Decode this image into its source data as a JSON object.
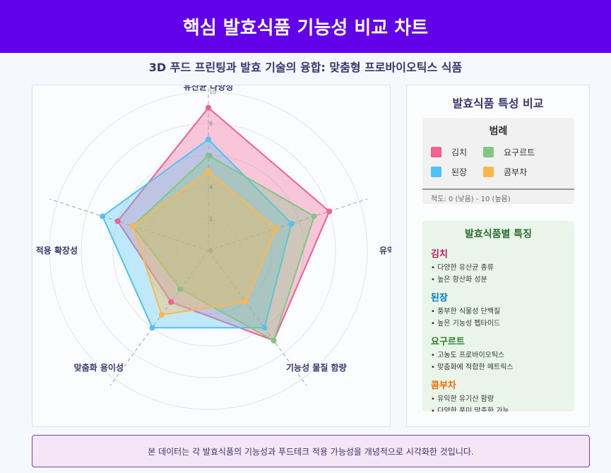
{
  "header": {
    "title": "핵심 발효식품 기능성 비교 차트"
  },
  "subtitle": "3D 푸드 프린팅과 발효 기술의 융합: 맞춤형 프로바이오틱스 식품",
  "chart_data": {
    "type": "radar",
    "axes": [
      "유산균 다양성",
      "유익균 생존율",
      "기능성 물질 함량",
      "맞춤화 용이성",
      "기술 적용 확장성"
    ],
    "range": [
      0,
      10
    ],
    "ticks": [
      "0",
      "2",
      "4",
      "6",
      "8",
      "10"
    ],
    "grid": true,
    "series": [
      {
        "name": "김치",
        "values": [
          9,
          8,
          7,
          4,
          6
        ],
        "color": "#f06292"
      },
      {
        "name": "된장",
        "values": [
          7,
          5.5,
          6,
          6,
          7
        ],
        "color": "#4fc3f7"
      },
      {
        "name": "요구르트",
        "values": [
          6,
          7,
          7,
          3,
          5
        ],
        "color": "#81c784"
      },
      {
        "name": "콤부차",
        "values": [
          5,
          4.5,
          4,
          5,
          5
        ],
        "color": "#ffb74d"
      }
    ]
  },
  "side": {
    "title": "발효식품 특성 비교",
    "legend_title": "범례",
    "scale_note": "척도: 0 (낮음) - 10 (높음)",
    "features_title": "발효식품별 특징",
    "features": [
      {
        "name": "김치",
        "color": "#c2185b",
        "lines": [
          "• 다양한 유산균 종류",
          "• 높은 항산화 성분"
        ]
      },
      {
        "name": "된장",
        "color": "#0277bd",
        "lines": [
          "• 풍부한 식물성 단백질",
          "• 높은 기능성 펩타이드"
        ]
      },
      {
        "name": "요구르트",
        "color": "#2e7d32",
        "lines": [
          "• 고농도 프로바이오틱스",
          "• 맞춤화에 적합한 메트릭스"
        ]
      },
      {
        "name": "콤부차",
        "color": "#ef6c00",
        "lines": [
          "• 유익한 유기산 함량",
          "• 다양한 풍미 맞춤화 가능"
        ]
      }
    ]
  },
  "note": "본 데이터는 각 발효식품의 기능성과 푸드테크 적용 가능성을 개념적으로 시각화한 것입니다."
}
